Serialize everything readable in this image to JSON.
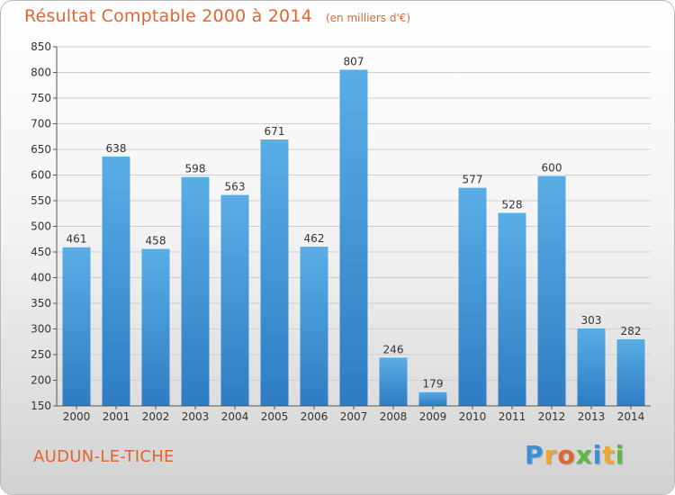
{
  "header": {
    "title": "Résultat Comptable 2000 à 2014",
    "unit": "(en milliers d'€)"
  },
  "footer": {
    "city": "AUDUN-LE-TICHE",
    "logo": "Proxiti"
  },
  "colors": {
    "accent": "#e0652f",
    "bar_top": "#5aaee6",
    "bar_bottom": "#2f7cc3"
  },
  "chart_data": {
    "type": "bar",
    "title": "Résultat Comptable 2000 à 2014",
    "xlabel": "",
    "ylabel": "",
    "ylim": [
      150,
      850
    ],
    "ytick_step": 50,
    "grid": true,
    "categories": [
      "2000",
      "2001",
      "2002",
      "2003",
      "2004",
      "2005",
      "2006",
      "2007",
      "2008",
      "2009",
      "2010",
      "2011",
      "2012",
      "2013",
      "2014"
    ],
    "values": [
      461,
      638,
      458,
      598,
      563,
      671,
      462,
      807,
      246,
      179,
      577,
      528,
      600,
      303,
      282
    ]
  }
}
